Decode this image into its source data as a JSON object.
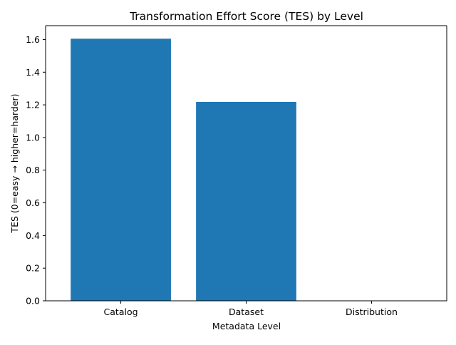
{
  "chart_data": {
    "type": "bar",
    "title": "Transformation Effort Score (TES) by Level",
    "xlabel": "Metadata Level",
    "ylabel": "TES (0=easy → higher=harder)",
    "categories": [
      "Catalog",
      "Dataset",
      "Distribution"
    ],
    "values": [
      1.605,
      1.218,
      0.0
    ],
    "ylim": [
      0,
      1.685
    ],
    "yticks": [
      0.0,
      0.2,
      0.4,
      0.6,
      0.8,
      1.0,
      1.2,
      1.4,
      1.6
    ],
    "ytick_labels": [
      "0.0",
      "0.2",
      "0.4",
      "0.6",
      "0.8",
      "1.0",
      "1.2",
      "1.4",
      "1.6"
    ],
    "grid": false,
    "colors": {
      "bar": "#1f77b4",
      "axis": "#000000",
      "background": "#ffffff"
    }
  }
}
